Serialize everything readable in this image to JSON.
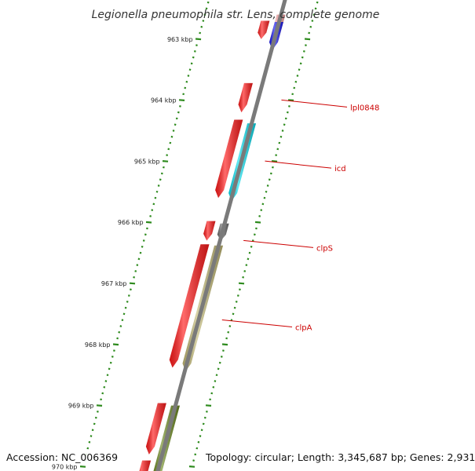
{
  "title": "Legionella pneumophila str. Lens, complete genome",
  "accession": "Accession: NC_006369",
  "summary": "Topology: circular; Length: 3,345,687 bp; Genes: 2,931",
  "colors": {
    "backbone": "#7a7a7a",
    "tick": "#2e8b1e",
    "label_line": "#cc0000",
    "label_text": "#cc0000"
  },
  "ticks": [
    {
      "label": "963 kbp"
    },
    {
      "label": "964 kbp"
    },
    {
      "label": "965 kbp"
    },
    {
      "label": "966 kbp"
    },
    {
      "label": "967 kbp"
    },
    {
      "label": "968 kbp"
    },
    {
      "label": "969 kbp"
    },
    {
      "label": "970 kbp"
    }
  ],
  "genes": [
    {
      "track": "outer",
      "color": "#f4a0a0",
      "start": 962.6,
      "end": 963.15
    },
    {
      "track": "inner",
      "color": "#ff2020",
      "start": 962.7,
      "end": 963.0
    },
    {
      "track": "outer",
      "color": "#1a1aee",
      "start": 962.72,
      "end": 963.18
    },
    {
      "track": "inner",
      "color": "#ff1a1a",
      "start": 963.72,
      "end": 964.2
    },
    {
      "track": "inner",
      "color": "#ff1a1a",
      "start": 964.32,
      "end": 965.6
    },
    {
      "track": "outer",
      "color": "#10e0f0",
      "start": 964.38,
      "end": 965.65
    },
    {
      "track": "inner",
      "color": "#ff1a1a",
      "start": 965.98,
      "end": 966.3
    },
    {
      "track": "outer",
      "color": "#6e6e6e",
      "start": 966.02,
      "end": 966.3
    },
    {
      "track": "inner",
      "color": "#ff1a1a",
      "start": 966.36,
      "end": 968.38
    },
    {
      "track": "outer",
      "color": "#c4bb78",
      "start": 966.38,
      "end": 968.44
    },
    {
      "track": "inner",
      "color": "#ff1a1a",
      "start": 968.96,
      "end": 969.8
    },
    {
      "track": "outer",
      "color": "#6e8b22",
      "start": 969.0,
      "end": 970.3
    },
    {
      "track": "inner",
      "color": "#ff1a1a",
      "start": 969.9,
      "end": 970.4
    }
  ],
  "gene_labels": [
    {
      "name": "lpl0848"
    },
    {
      "name": "icd"
    },
    {
      "name": "clpS"
    },
    {
      "name": "clpA"
    }
  ]
}
